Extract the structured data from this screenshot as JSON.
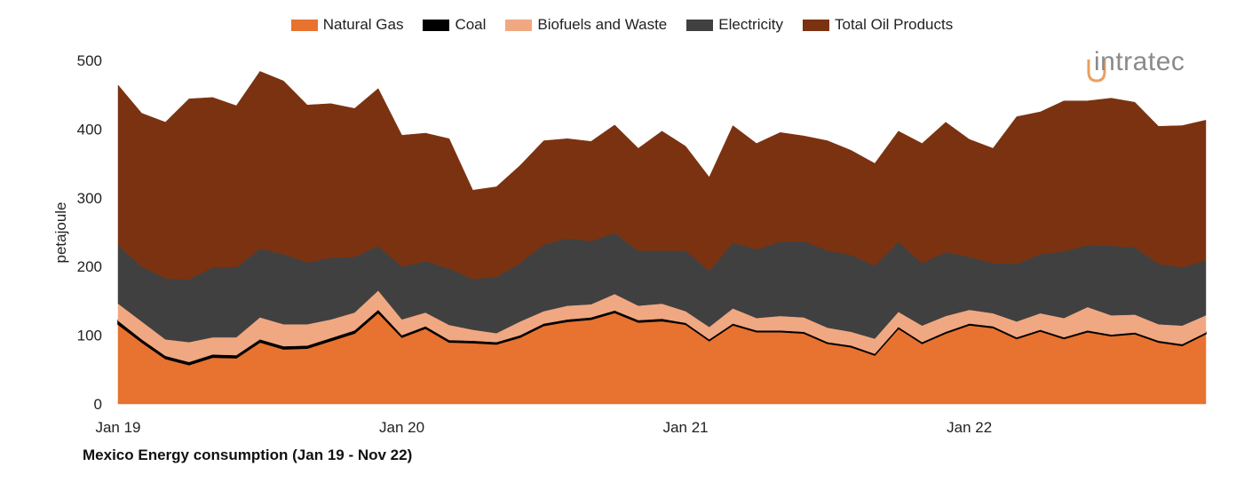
{
  "chart_data": {
    "type": "area",
    "stacked": true,
    "title": "Mexico Energy consumption (Jan 19 - Nov 22)",
    "xlabel": "",
    "ylabel": "petajoule",
    "ylim": [
      0,
      500
    ],
    "yticks": [
      0,
      100,
      200,
      300,
      400,
      500
    ],
    "xtick_labels": [
      {
        "label": "Jan 19",
        "index": 0
      },
      {
        "label": "Jan 20",
        "index": 12
      },
      {
        "label": "Jan 21",
        "index": 24
      },
      {
        "label": "Jan 22",
        "index": 36
      }
    ],
    "x_start": "Jan 19",
    "x_end": "Nov 22",
    "x_count_months": 47,
    "legend_position": "top",
    "grid": false,
    "series": [
      {
        "name": "Natural Gas",
        "color": "#E8722F",
        "values": [
          116,
          90,
          66,
          57,
          68,
          67,
          90,
          80,
          81,
          92,
          103,
          133,
          97,
          110,
          90,
          89,
          87,
          97,
          114,
          120,
          123,
          133,
          119,
          121,
          116,
          92,
          115,
          105,
          105,
          103,
          88,
          83,
          71,
          110,
          88,
          103,
          115,
          111,
          95,
          106,
          95,
          105,
          99,
          102,
          90,
          85,
          102
        ]
      },
      {
        "name": "Coal",
        "color": "#000000",
        "values": [
          5,
          4,
          4,
          4,
          4,
          4,
          4,
          4,
          4,
          4,
          4,
          4,
          3,
          3,
          3,
          3,
          3,
          3,
          3,
          3,
          3,
          3,
          3,
          3,
          2,
          2,
          2,
          2,
          2,
          2,
          2,
          2,
          2,
          2,
          2,
          2,
          2,
          2,
          2,
          2,
          2,
          2,
          2,
          2,
          2,
          2,
          2
        ]
      },
      {
        "name": "Biofuels and Waste",
        "color": "#F0A882",
        "values": [
          25,
          26,
          24,
          29,
          25,
          26,
          32,
          32,
          31,
          27,
          26,
          28,
          23,
          20,
          22,
          16,
          13,
          20,
          18,
          20,
          19,
          24,
          21,
          22,
          17,
          18,
          22,
          18,
          21,
          21,
          21,
          20,
          22,
          22,
          24,
          23,
          20,
          19,
          23,
          24,
          28,
          34,
          28,
          26,
          24,
          27,
          25
        ]
      },
      {
        "name": "Electricity",
        "color": "#404040",
        "values": [
          85,
          80,
          89,
          91,
          102,
          102,
          100,
          102,
          90,
          90,
          81,
          65,
          77,
          75,
          82,
          74,
          82,
          85,
          97,
          98,
          92,
          89,
          80,
          77,
          88,
          82,
          96,
          100,
          108,
          111,
          112,
          112,
          106,
          102,
          91,
          93,
          77,
          73,
          84,
          86,
          97,
          90,
          101,
          98,
          88,
          85,
          80
        ]
      },
      {
        "name": "Total Oil Products",
        "color": "#7B3210",
        "values": [
          233,
          223,
          227,
          263,
          247,
          235,
          258,
          252,
          229,
          224,
          216,
          229,
          191,
          186,
          189,
          129,
          131,
          142,
          151,
          145,
          145,
          157,
          149,
          174,
          152,
          136,
          170,
          154,
          159,
          153,
          160,
          152,
          149,
          161,
          174,
          189,
          171,
          167,
          214,
          207,
          219,
          210,
          215,
          211,
          200,
          206,
          204
        ]
      }
    ]
  },
  "legend": {
    "items": [
      "Natural Gas",
      "Coal",
      "Biofuels and Waste",
      "Electricity",
      "Total Oil Products"
    ]
  },
  "logo": {
    "text": "intratec"
  }
}
